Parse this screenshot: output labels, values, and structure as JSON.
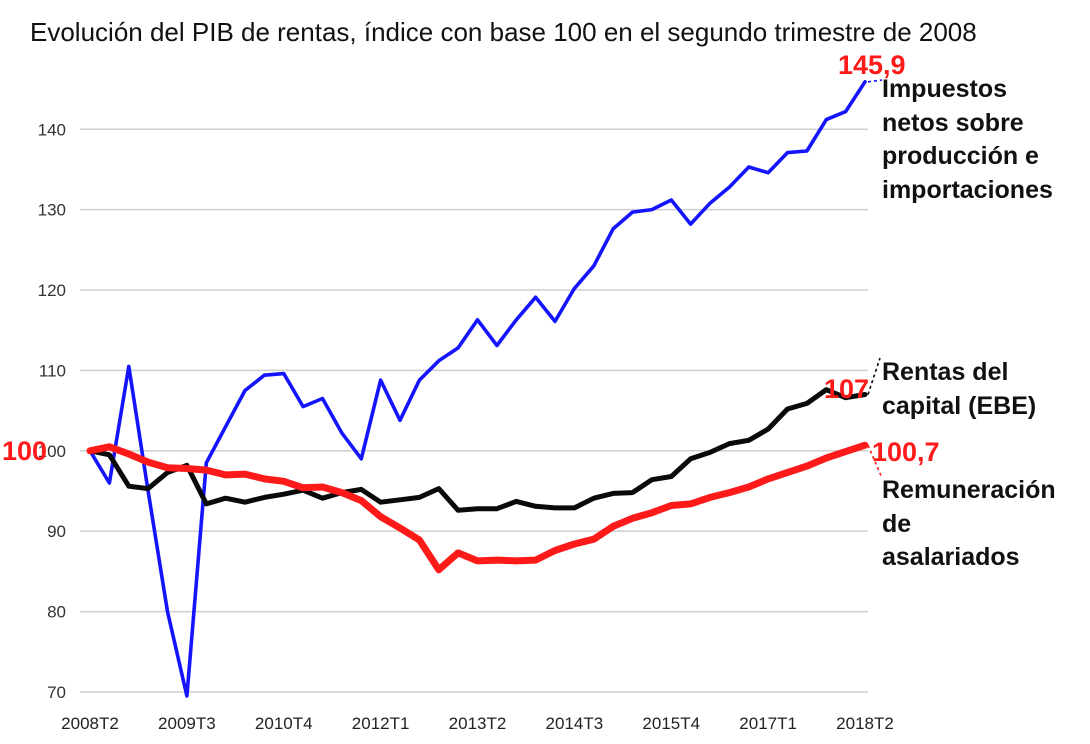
{
  "chart_data": {
    "type": "line",
    "title": "Evolución del PIB de rentas, índice con base 100 en el segundo trimestre de 2008",
    "xlabel": "",
    "ylabel": "",
    "ylim": [
      69,
      146.5
    ],
    "yticks": [
      70,
      80,
      90,
      100,
      110,
      120,
      130,
      140
    ],
    "x": [
      "2008T2",
      "2008T3",
      "2008T4",
      "2009T1",
      "2009T2",
      "2009T3",
      "2009T4",
      "2010T1",
      "2010T2",
      "2010T3",
      "2010T4",
      "2011T1",
      "2011T2",
      "2011T3",
      "2011T4",
      "2012T1",
      "2012T2",
      "2012T3",
      "2012T4",
      "2013T1",
      "2013T2",
      "2013T3",
      "2013T4",
      "2014T1",
      "2014T2",
      "2014T3",
      "2014T4",
      "2015T1",
      "2015T2",
      "2015T3",
      "2015T4",
      "2016T1",
      "2016T2",
      "2016T3",
      "2016T4",
      "2017T1",
      "2017T2",
      "2017T3",
      "2017T4",
      "2018T1",
      "2018T2"
    ],
    "xtick_labels": [
      "2008T2",
      "2009T3",
      "2010T4",
      "2012T1",
      "2013T2",
      "2014T3",
      "2015T4",
      "2017T1",
      "2018T2"
    ],
    "series": [
      {
        "name": "Impuestos netos sobre producción e importaciones",
        "color": "#1414ff",
        "values": [
          100,
          96,
          110.5,
          95,
          80,
          69.5,
          98.5,
          103,
          107.5,
          109.4,
          109.6,
          105.5,
          106.5,
          102.2,
          99,
          108.8,
          103.8,
          108.8,
          111.2,
          112.8,
          116.3,
          113.1,
          116.3,
          119.1,
          116.1,
          120.2,
          123,
          127.6,
          129.7,
          130,
          131.2,
          128.2,
          130.8,
          132.8,
          135.3,
          134.6,
          137.1,
          137.3,
          141.2,
          142.2,
          145.9
        ]
      },
      {
        "name": "Rentas del capital (EBE)",
        "color": "#0a0a0a",
        "values": [
          100,
          99.5,
          95.6,
          95.3,
          97.3,
          98.2,
          93.4,
          94.1,
          93.6,
          94.2,
          94.6,
          95.1,
          94.1,
          94.8,
          95.2,
          93.6,
          93.9,
          94.2,
          95.3,
          92.6,
          92.8,
          92.8,
          93.7,
          93.1,
          92.9,
          92.9,
          94.1,
          94.7,
          94.8,
          96.4,
          96.8,
          99,
          99.8,
          100.9,
          101.3,
          102.7,
          105.2,
          105.9,
          107.6,
          106.6,
          107
        ]
      },
      {
        "name": "Remuneración de asalariados",
        "color": "#ff1a1a",
        "values": [
          100,
          100.5,
          99.6,
          98.6,
          97.9,
          97.8,
          97.6,
          97,
          97.1,
          96.5,
          96.2,
          95.4,
          95.5,
          94.8,
          93.8,
          91.8,
          90.4,
          88.9,
          85.2,
          87.3,
          86.3,
          86.4,
          86.3,
          86.4,
          87.6,
          88.4,
          89,
          90.6,
          91.6,
          92.3,
          93.2,
          93.4,
          94.2,
          94.8,
          95.5,
          96.5,
          97.3,
          98.1,
          99.1,
          99.9,
          100.7
        ]
      }
    ],
    "base_label": "100",
    "end_labels": [
      "145,9",
      "107",
      "100,7"
    ],
    "legend_lines": [
      [
        "Impuestos",
        "netos sobre",
        "producción e",
        "importaciones"
      ],
      [
        "Rentas del",
        "capital (EBE)"
      ],
      [
        "Remuneración",
        "de",
        "asalariados"
      ]
    ],
    "grid": true,
    "legend_position": "right"
  }
}
